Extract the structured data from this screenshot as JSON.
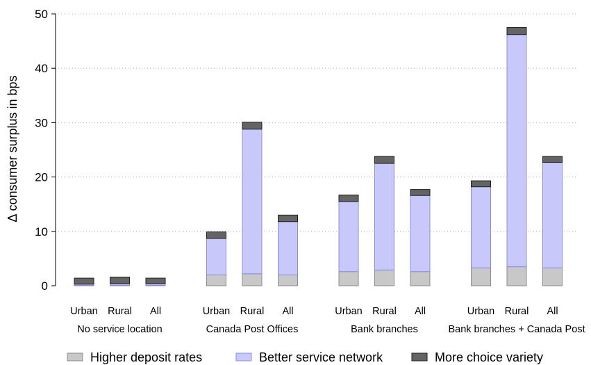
{
  "chart_data": {
    "type": "bar",
    "stacked": true,
    "title": "",
    "xlabel": "",
    "ylabel": "Δ consumer surplus in bps",
    "ylim": [
      0,
      50
    ],
    "yticks": [
      0,
      10,
      20,
      30,
      40,
      50
    ],
    "grid": "horizontal dotted",
    "legend_position": "bottom",
    "groups": [
      {
        "label": "No service location",
        "categories": [
          "Urban",
          "Rural",
          "All"
        ]
      },
      {
        "label": "Canada Post Offices",
        "categories": [
          "Urban",
          "Rural",
          "All"
        ]
      },
      {
        "label": "Bank branches",
        "categories": [
          "Urban",
          "Rural",
          "All"
        ]
      },
      {
        "label": "Bank branches + Canada Post",
        "categories": [
          "Urban",
          "Rural",
          "All"
        ]
      }
    ],
    "series": [
      {
        "name": "Higher deposit rates",
        "color": "#c8c8c8",
        "stroke": "#8c8c8c",
        "values": [
          0.1,
          0.1,
          0.1,
          2.0,
          2.2,
          2.0,
          2.6,
          2.9,
          2.6,
          3.3,
          3.5,
          3.3
        ]
      },
      {
        "name": "Better service network",
        "color": "#c8c8fa",
        "stroke": "#8c8ce6",
        "values": [
          0.2,
          0.3,
          0.3,
          6.7,
          26.6,
          9.8,
          12.9,
          19.6,
          14.0,
          14.9,
          42.7,
          19.4
        ]
      },
      {
        "name": "More choice variety",
        "color": "#646464",
        "stroke": "#1e1e1e",
        "values": [
          1.1,
          1.2,
          1.0,
          1.2,
          1.3,
          1.2,
          1.2,
          1.3,
          1.1,
          1.1,
          1.3,
          1.1
        ]
      }
    ]
  }
}
